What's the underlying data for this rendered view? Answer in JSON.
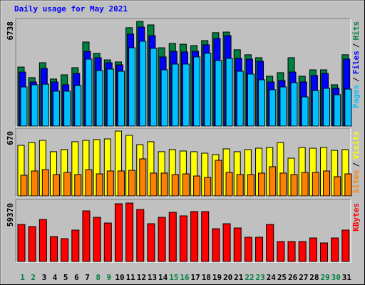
{
  "chart_data": [
    {
      "type": "bar",
      "title": "Daily usage for May 2021",
      "legend_separator": "/",
      "ylim": [
        0,
        6738
      ],
      "yticks": [
        6738
      ],
      "series": [
        {
          "name": "Hits",
          "color": "#008040",
          "values": [
            3800,
            3120,
            4080,
            3030,
            3300,
            3760,
            5410,
            4680,
            4260,
            4130,
            6330,
            6738,
            6510,
            5040,
            5320,
            5270,
            5180,
            5500,
            6010,
            6050,
            4910,
            4590,
            4400,
            3210,
            3440,
            4400,
            3210,
            3620,
            3620,
            2660,
            4590
          ]
        },
        {
          "name": "Files",
          "color": "#0000ff",
          "values": [
            3480,
            2840,
            3710,
            2840,
            2660,
            3390,
            4810,
            4400,
            4080,
            3940,
            5920,
            6370,
            5820,
            4450,
            4810,
            4770,
            4810,
            5230,
            5640,
            5820,
            4360,
            4310,
            4170,
            2840,
            2930,
            3480,
            2840,
            3260,
            3390,
            2430,
            4310
          ]
        },
        {
          "name": "Pages",
          "color": "#00c0ff",
          "values": [
            2520,
            2660,
            2700,
            2250,
            2250,
            2610,
            4310,
            3580,
            3670,
            3530,
            5040,
            5460,
            5000,
            3620,
            3990,
            3990,
            4450,
            4680,
            4220,
            4360,
            3530,
            3350,
            2980,
            2340,
            2520,
            2800,
            1880,
            2290,
            2430,
            2020,
            2380
          ]
        }
      ]
    },
    {
      "type": "bar",
      "legend_separator": "/",
      "ylim": [
        0,
        670
      ],
      "yticks": [
        670
      ],
      "series": [
        {
          "name": "Visits",
          "color": "#ffff00",
          "values": [
            523,
            552,
            574,
            457,
            479,
            560,
            574,
            582,
            589,
            670,
            626,
            530,
            560,
            457,
            479,
            464,
            457,
            442,
            427,
            486,
            457,
            479,
            493,
            501,
            552,
            390,
            501,
            493,
            501,
            471,
            479
          ]
        },
        {
          "name": "Sites",
          "color": "#ff8000",
          "values": [
            214,
            258,
            272,
            221,
            243,
            221,
            272,
            228,
            258,
            258,
            265,
            383,
            236,
            236,
            221,
            228,
            206,
            191,
            368,
            243,
            221,
            221,
            236,
            302,
            236,
            221,
            243,
            243,
            258,
            199,
            228
          ]
        }
      ]
    },
    {
      "type": "bar",
      "ylim": [
        0,
        59370
      ],
      "yticks": [
        59370
      ],
      "categories": [
        "1",
        "2",
        "3",
        "4",
        "5",
        "6",
        "7",
        "8",
        "9",
        "10",
        "11",
        "12",
        "13",
        "14",
        "15",
        "16",
        "17",
        "18",
        "19",
        "20",
        "21",
        "22",
        "23",
        "24",
        "25",
        "26",
        "27",
        "28",
        "29",
        "30",
        "31"
      ],
      "category_colors": [
        "#008040",
        "#008040",
        "#000000",
        "#000000",
        "#000000",
        "#000000",
        "#000000",
        "#008040",
        "#008040",
        "#000000",
        "#000000",
        "#000000",
        "#000000",
        "#000000",
        "#008040",
        "#008040",
        "#000000",
        "#000000",
        "#000000",
        "#000000",
        "#000000",
        "#008040",
        "#008040",
        "#000000",
        "#000000",
        "#000000",
        "#000000",
        "#000000",
        "#008040",
        "#008040",
        "#000000"
      ],
      "series": [
        {
          "name": "KBytes",
          "color": "#ff0000",
          "values": [
            37650,
            35480,
            42720,
            25340,
            23170,
            31860,
            51400,
            44890,
            39100,
            58650,
            59370,
            52860,
            38370,
            44890,
            49960,
            46340,
            50680,
            50680,
            33310,
            38370,
            34030,
            24620,
            24620,
            37650,
            20270,
            20270,
            20270,
            23890,
            18830,
            23890,
            31860
          ]
        }
      ]
    }
  ]
}
